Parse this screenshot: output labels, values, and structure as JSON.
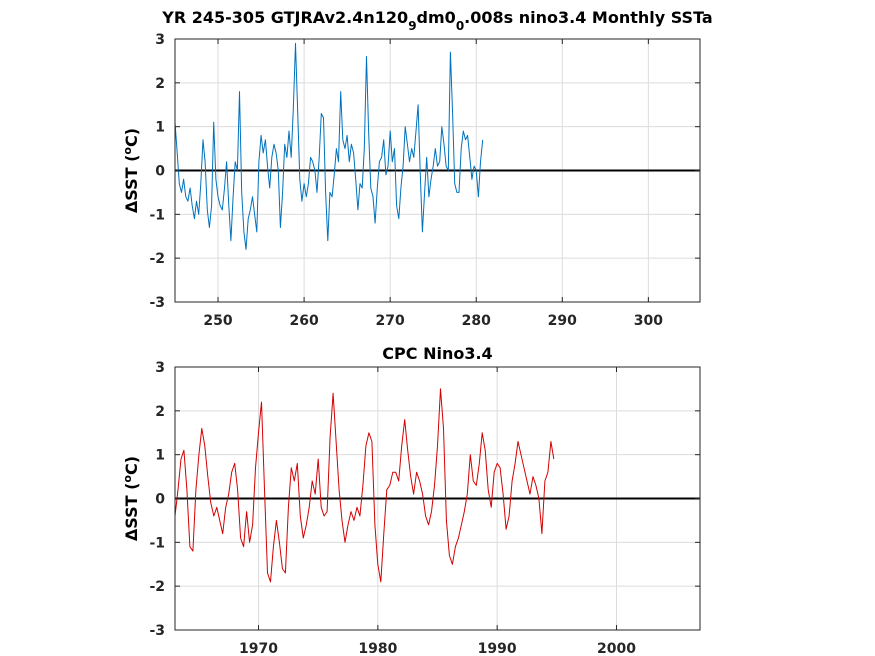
{
  "chart_data": [
    {
      "type": "line",
      "title_parts": [
        {
          "text": "YR 245-305 GTJRAv2.4n120",
          "sub": false
        },
        {
          "text": "9",
          "sub": true
        },
        {
          "text": "dm0",
          "sub": false
        },
        {
          "text": "0",
          "sub": true
        },
        {
          "text": ".008s nino3.4 Monthly SSTa",
          "sub": false
        }
      ],
      "ylabel_prefix": "ΔSST (",
      "ylabel_sup": "o",
      "ylabel_suffix": "C)",
      "xlim": [
        245,
        306
      ],
      "ylim": [
        -3,
        3
      ],
      "xticks": [
        250,
        260,
        270,
        280,
        290,
        300
      ],
      "yticks": [
        -3,
        -2,
        -1,
        0,
        1,
        2,
        3
      ],
      "grid": true,
      "zero_line": true,
      "color": "#0072BD",
      "series": [
        {
          "x_start": 245,
          "x_step": 0.25,
          "values": [
            1.1,
            0.4,
            -0.3,
            -0.5,
            -0.2,
            -0.6,
            -0.7,
            -0.4,
            -0.8,
            -1.1,
            -0.7,
            -1.0,
            -0.3,
            0.7,
            0.2,
            -0.9,
            -1.3,
            -0.8,
            1.1,
            -0.2,
            -0.6,
            -0.8,
            -0.9,
            -0.4,
            0.2,
            -0.8,
            -1.6,
            -0.6,
            0.2,
            0.0,
            1.8,
            -0.5,
            -1.4,
            -1.8,
            -1.1,
            -0.9,
            -0.6,
            -1.0,
            -1.4,
            0.2,
            0.8,
            0.4,
            0.7,
            0.1,
            -0.4,
            0.3,
            0.6,
            0.4,
            0.0,
            -1.3,
            -0.5,
            0.6,
            0.3,
            0.9,
            0.3,
            1.4,
            2.9,
            1.4,
            -0.2,
            -0.7,
            -0.3,
            -0.6,
            -0.3,
            0.3,
            0.2,
            0.0,
            -0.5,
            0.3,
            1.3,
            1.2,
            -0.5,
            -1.6,
            -0.5,
            -0.6,
            -0.1,
            0.5,
            0.2,
            1.8,
            0.7,
            0.5,
            0.8,
            0.2,
            0.6,
            0.4,
            -0.2,
            -0.9,
            -0.3,
            -0.4,
            0.5,
            2.6,
            0.9,
            -0.4,
            -0.6,
            -1.2,
            -0.4,
            0.2,
            0.3,
            0.7,
            -0.1,
            0.1,
            0.9,
            0.2,
            0.5,
            -0.8,
            -1.1,
            -0.4,
            0.1,
            1.0,
            0.6,
            0.2,
            0.5,
            0.3,
            0.9,
            1.5,
            -0.1,
            -1.4,
            -0.5,
            0.3,
            -0.6,
            -0.2,
            0.1,
            0.5,
            0.1,
            0.2,
            1.0,
            0.6,
            0.1,
            0.0,
            2.7,
            1.3,
            -0.3,
            -0.5,
            -0.5,
            0.5,
            0.9,
            0.7,
            0.8,
            0.3,
            -0.2,
            0.1,
            0.0,
            -0.6,
            0.2,
            0.7
          ]
        }
      ]
    },
    {
      "type": "line",
      "title_parts": [
        {
          "text": "CPC Nino3.4",
          "sub": false
        }
      ],
      "ylabel_prefix": "ΔSST (",
      "ylabel_sup": "o",
      "ylabel_suffix": "C)",
      "xlim": [
        1963,
        2007
      ],
      "ylim": [
        -3,
        3
      ],
      "xticks": [
        1970,
        1980,
        1990,
        2000
      ],
      "yticks": [
        -3,
        -2,
        -1,
        0,
        1,
        2,
        3
      ],
      "grid": true,
      "zero_line": true,
      "color": "#D40000",
      "series": [
        {
          "x_start": 1963,
          "x_step": 0.25,
          "values": [
            -0.4,
            0.2,
            0.9,
            1.1,
            0.2,
            -1.1,
            -1.2,
            0.2,
            1.0,
            1.6,
            1.2,
            0.5,
            -0.1,
            -0.4,
            -0.2,
            -0.5,
            -0.8,
            -0.2,
            0.1,
            0.6,
            0.8,
            0.2,
            -0.9,
            -1.1,
            -0.3,
            -1.0,
            -0.6,
            0.7,
            1.5,
            2.2,
            0.2,
            -1.7,
            -1.9,
            -1.1,
            -0.5,
            -1.0,
            -1.6,
            -1.7,
            -0.2,
            0.7,
            0.4,
            0.8,
            -0.4,
            -0.9,
            -0.6,
            -0.2,
            0.4,
            0.1,
            0.9,
            -0.2,
            -0.4,
            -0.3,
            1.4,
            2.4,
            1.3,
            0.2,
            -0.5,
            -1.0,
            -0.6,
            -0.3,
            -0.5,
            -0.2,
            -0.4,
            0.3,
            1.2,
            1.5,
            1.3,
            -0.6,
            -1.5,
            -1.9,
            -0.8,
            0.2,
            0.3,
            0.6,
            0.6,
            0.4,
            1.2,
            1.8,
            1.1,
            0.5,
            0.1,
            0.6,
            0.4,
            0.1,
            -0.4,
            -0.6,
            -0.3,
            0.3,
            1.2,
            2.5,
            1.6,
            -0.5,
            -1.3,
            -1.5,
            -1.1,
            -0.9,
            -0.6,
            -0.3,
            0.1,
            1.0,
            0.4,
            0.3,
            0.8,
            1.5,
            1.1,
            0.2,
            -0.2,
            0.6,
            0.8,
            0.7,
            0.1,
            -0.7,
            -0.4,
            0.4,
            0.8,
            1.3,
            1.0,
            0.7,
            0.4,
            0.1,
            0.5,
            0.3,
            0.0,
            -0.8,
            0.4,
            0.6,
            1.3,
            0.9
          ]
        }
      ]
    }
  ]
}
